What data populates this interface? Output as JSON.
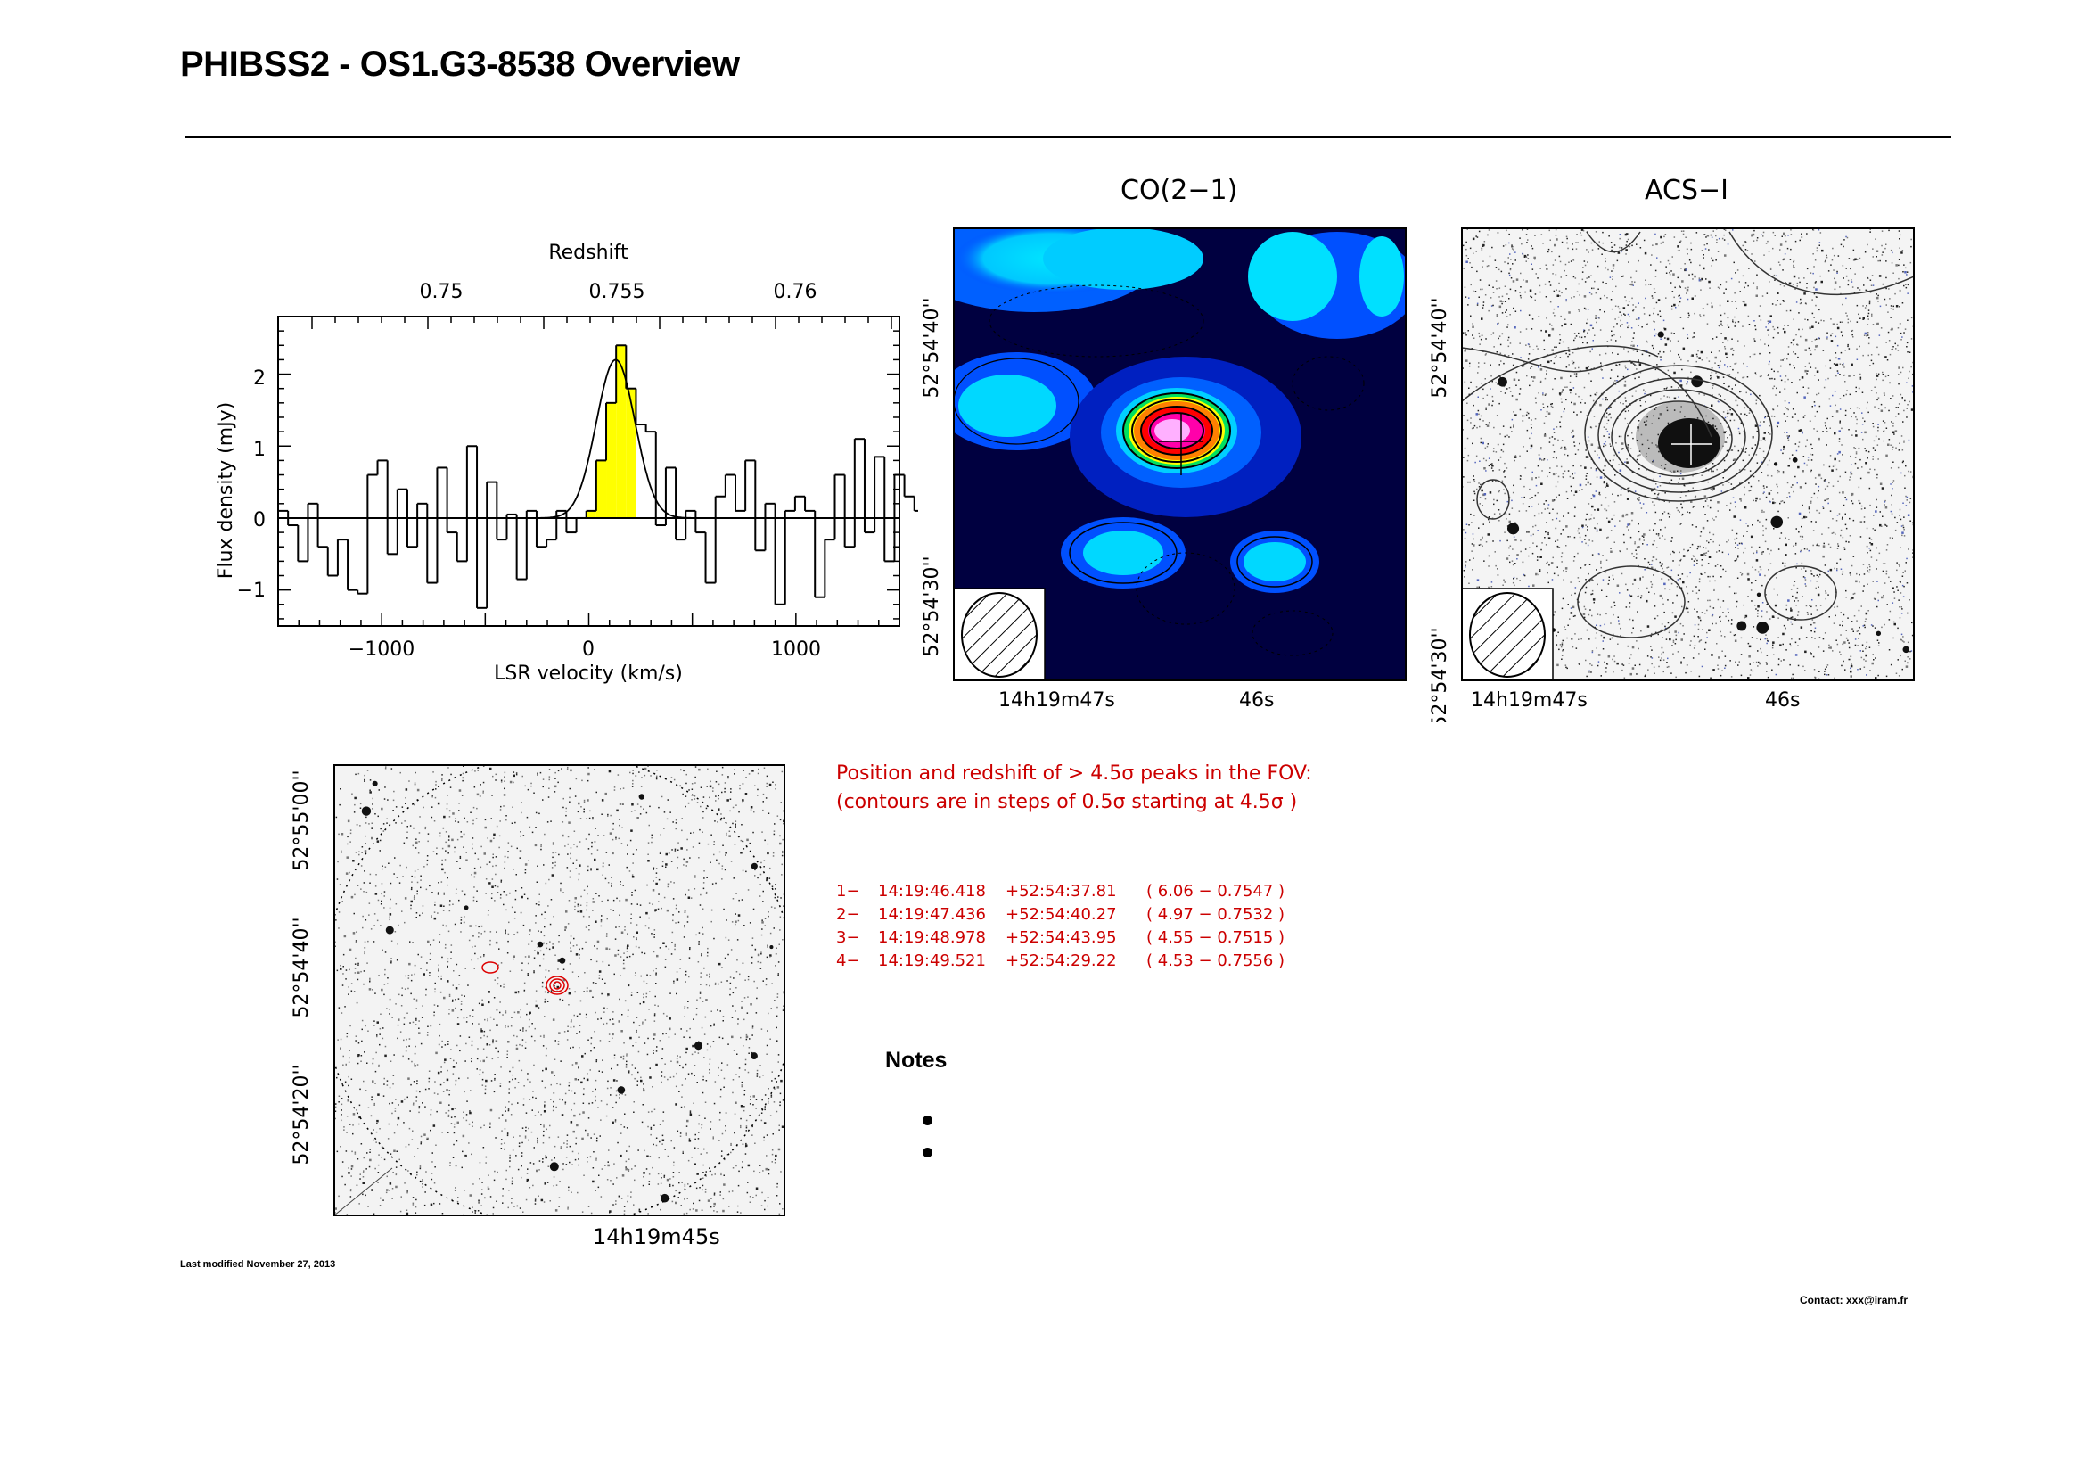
{
  "header": {
    "title": "PHIBSS2 - OS1.G3-8538 Overview"
  },
  "spectrum": {
    "top_axis_label": "Redshift",
    "top_ticks": [
      "0.75",
      "0.755",
      "0.76"
    ],
    "ylabel": "Flux density  (mJy)",
    "yticks": [
      "2",
      "1",
      "0",
      "−1"
    ],
    "xlabel": "LSR velocity  (km/s)",
    "xticks": [
      "−1000",
      "0",
      "1000"
    ]
  },
  "chart_data": {
    "type": "line",
    "title": "",
    "xlabel": "LSR velocity  (km/s)",
    "ylabel": "Flux density  (mJy)",
    "secondary_xlabel": "Redshift",
    "xlim": [
      -1500,
      1500
    ],
    "ylim": [
      -1.5,
      2.8
    ],
    "bin_width_kms": 48,
    "series": [
      {
        "x_start": -1500,
        "values": [
          0.1,
          -0.1,
          -0.6,
          0.2,
          -0.4,
          -0.8,
          -0.3,
          -1.0,
          -1.05,
          0.6,
          0.8,
          -0.5,
          0.4,
          -0.4,
          0.2,
          -0.9,
          0.7,
          -0.2,
          -0.6,
          1.0,
          -1.25,
          0.5,
          -0.3,
          0.05,
          -0.85,
          0.1,
          -0.4,
          -0.3,
          0.1,
          -0.2,
          0.0,
          0.1,
          0.8,
          1.6,
          2.4,
          1.8,
          1.3,
          1.2,
          -0.1,
          0.7,
          -0.3,
          0.1,
          -0.2,
          -0.9,
          0.3,
          0.6,
          0.1,
          0.8,
          -0.45,
          0.2,
          -1.2,
          0.1,
          0.3,
          0.1,
          -1.1,
          -0.3,
          0.6,
          -0.4,
          1.1,
          -0.2,
          0.85,
          -0.6,
          0.6,
          0.3,
          0.1,
          0.9,
          -1.2,
          -0.3,
          0.6,
          -0.2,
          0.3,
          0.6,
          0.3
        ]
      },
      {
        "type": "gaussian",
        "amplitude": 2.2,
        "center": 130,
        "fwhm": 220
      }
    ]
  },
  "co_panel": {
    "title": "CO(2−1)",
    "dec_ticks": [
      "52°54'40''",
      "52°54'30''"
    ],
    "ra_ticks": [
      "14h19m47s",
      "46s"
    ]
  },
  "acs_panel": {
    "title": "ACS−I",
    "dec_ticks": [
      "52°54'40''",
      "52°54'30''"
    ],
    "ra_ticks": [
      "14h19m47s",
      "46s"
    ]
  },
  "fov_panel": {
    "dec_ticks": [
      "52°55'00''",
      "52°54'40''",
      "52°54'20''"
    ],
    "ra_tick": "14h19m45s"
  },
  "peaks": {
    "intro_line1": "Position and redshift of > 4.5σ peaks in the FOV:",
    "intro_line2": "(contours are in steps of 0.5σ starting at 4.5σ )",
    "rows": [
      {
        "idx": "1−",
        "ra": "14:19:46.418",
        "dec": "+52:54:37.81",
        "val": "( 6.06 − 0.7547 )"
      },
      {
        "idx": "2−",
        "ra": "14:19:47.436",
        "dec": "+52:54:40.27",
        "val": "( 4.97 − 0.7532 )"
      },
      {
        "idx": "3−",
        "ra": "14:19:48.978",
        "dec": "+52:54:43.95",
        "val": "( 4.55 − 0.7515 )"
      },
      {
        "idx": "4−",
        "ra": "14:19:49.521",
        "dec": "+52:54:29.22",
        "val": "( 4.53 − 0.7556 )"
      }
    ]
  },
  "notes": {
    "title": "Notes",
    "items": [
      "",
      ""
    ]
  },
  "footer": {
    "last_modified": "Last modified November 27, 2013",
    "contact": "Contact: xxx@iram.fr"
  }
}
